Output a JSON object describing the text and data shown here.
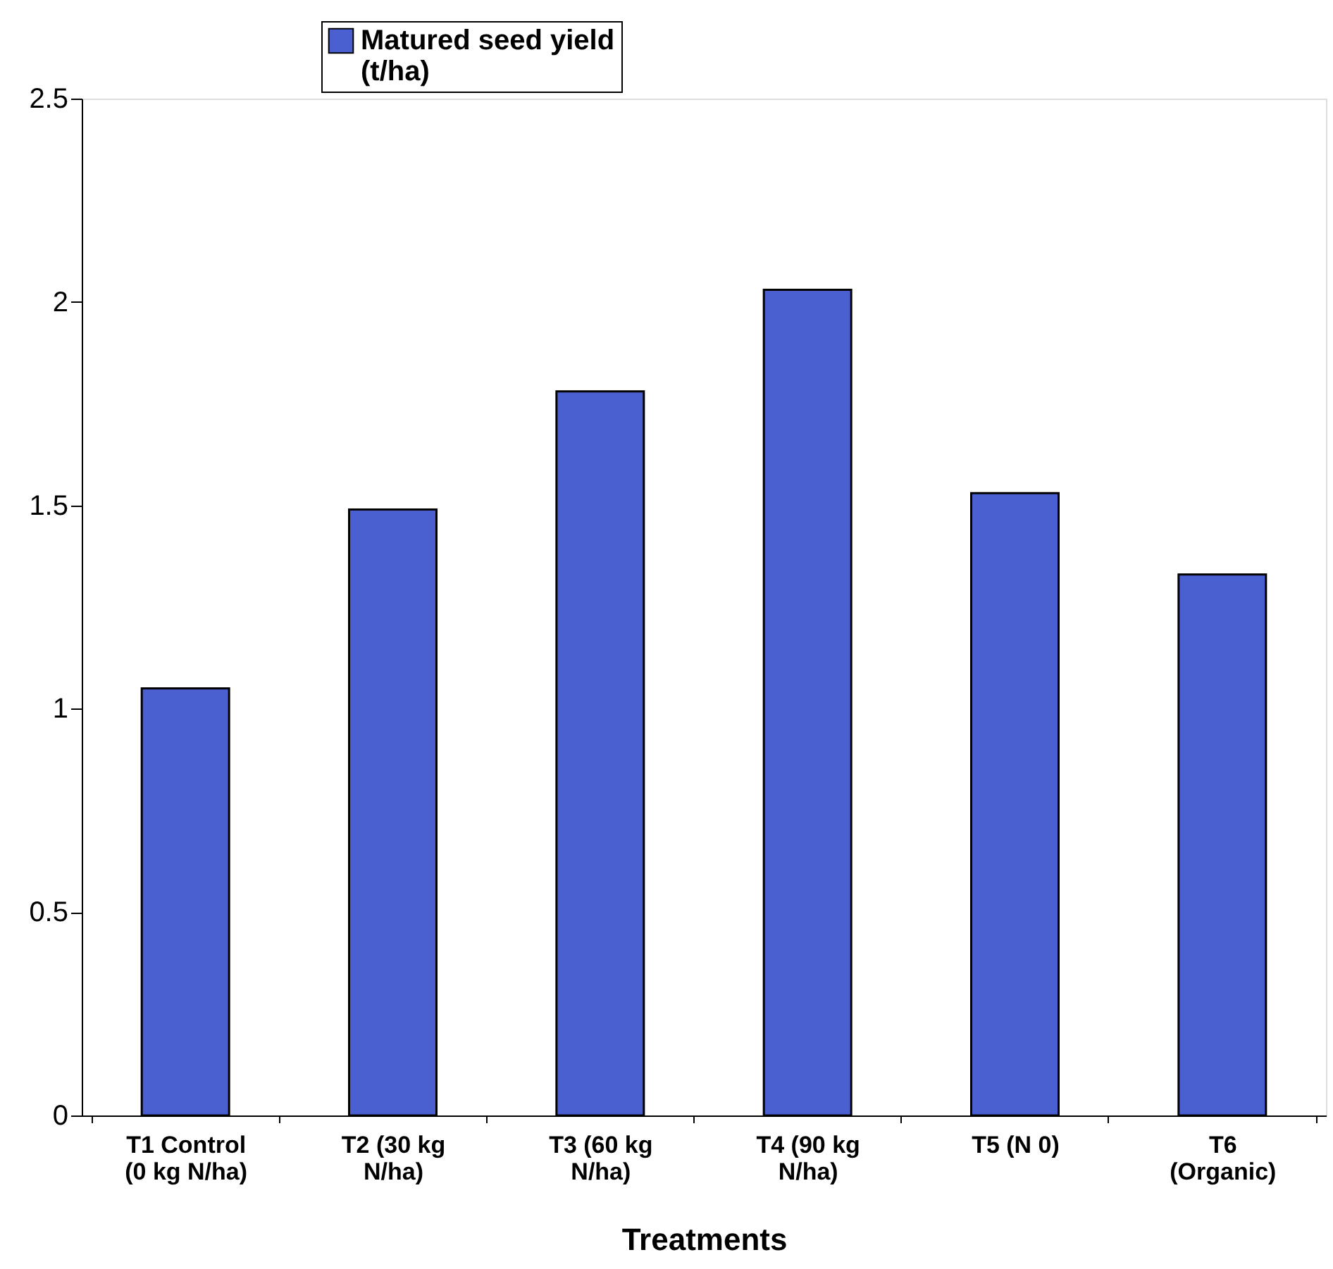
{
  "chart_data": {
    "type": "bar",
    "xlabel": "Treatments",
    "categories": [
      "T1 Control (0 kg N/ha)",
      "T2 (30 kg N/ha)",
      "T3 (60 kg N/ha)",
      "T4 (90 kg N/ha)",
      "T5 (N 0)",
      "T6 (Organic)"
    ],
    "series": [
      {
        "name": "Matured seed yield (t/ha)",
        "color": "#4a5fd0",
        "values": [
          1.05,
          1.49,
          1.78,
          2.03,
          1.53,
          1.33
        ]
      }
    ],
    "ylim": [
      0,
      2.5
    ],
    "yticks": [
      0,
      0.5,
      1,
      1.5,
      2,
      2.5
    ],
    "grid": false,
    "legend": "top left"
  }
}
